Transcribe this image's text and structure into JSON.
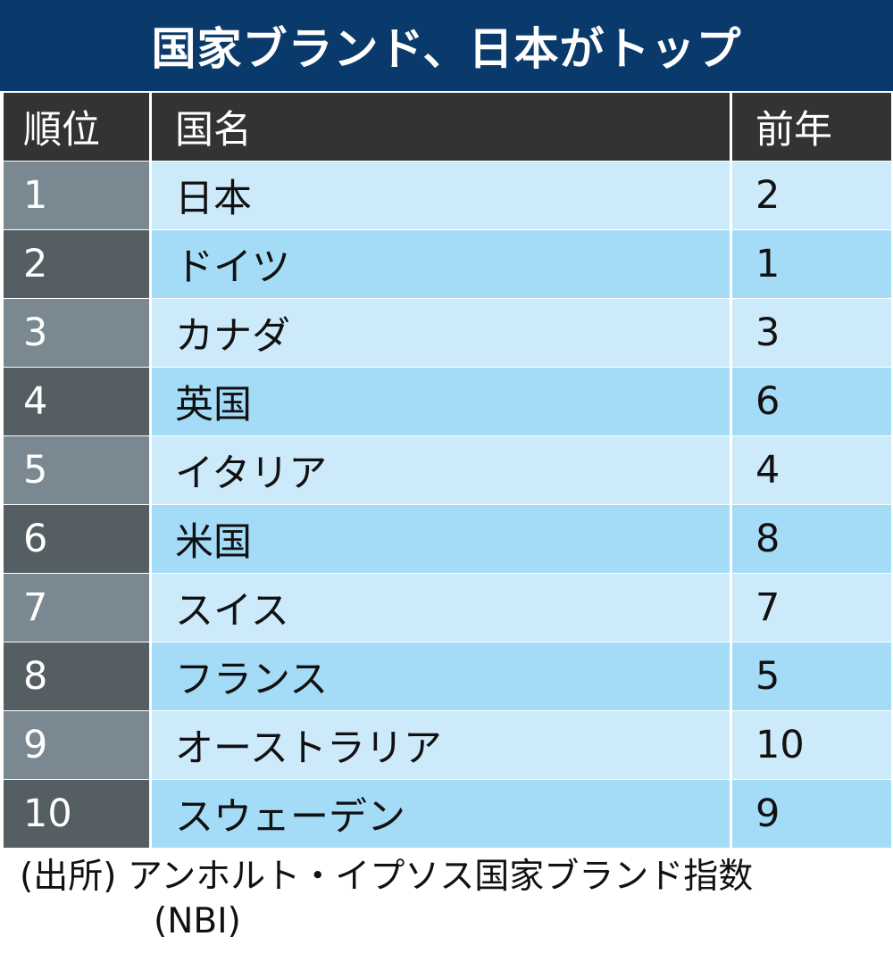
{
  "title": "国家ブランド、日本がトップ",
  "headers": {
    "rank": "順位",
    "country": "国名",
    "previous": "前年"
  },
  "chart_data": {
    "type": "table",
    "title": "国家ブランド、日本がトップ",
    "columns": [
      "順位",
      "国名",
      "前年"
    ],
    "rows": [
      {
        "rank": "1",
        "country": "日本",
        "previous": "2"
      },
      {
        "rank": "2",
        "country": "ドイツ",
        "previous": "1"
      },
      {
        "rank": "3",
        "country": "カナダ",
        "previous": "3"
      },
      {
        "rank": "4",
        "country": "英国",
        "previous": "6"
      },
      {
        "rank": "5",
        "country": "イタリア",
        "previous": "4"
      },
      {
        "rank": "6",
        "country": "米国",
        "previous": "8"
      },
      {
        "rank": "7",
        "country": "スイス",
        "previous": "7"
      },
      {
        "rank": "8",
        "country": "フランス",
        "previous": "5"
      },
      {
        "rank": "9",
        "country": "オーストラリア",
        "previous": "10"
      },
      {
        "rank": "10",
        "country": "スウェーデン",
        "previous": "9"
      }
    ]
  },
  "source": {
    "line1": "(出所) アンホルト・イプソス国家ブランド指数",
    "line2": "(NBI)"
  },
  "colors": {
    "title_bg": "#0a3a6b",
    "header_bg": "#333333",
    "rank_light": "#7a8991",
    "rank_dark": "#555e63",
    "row_light": "#cdeafb",
    "row_dark": "#a4dcf8"
  }
}
